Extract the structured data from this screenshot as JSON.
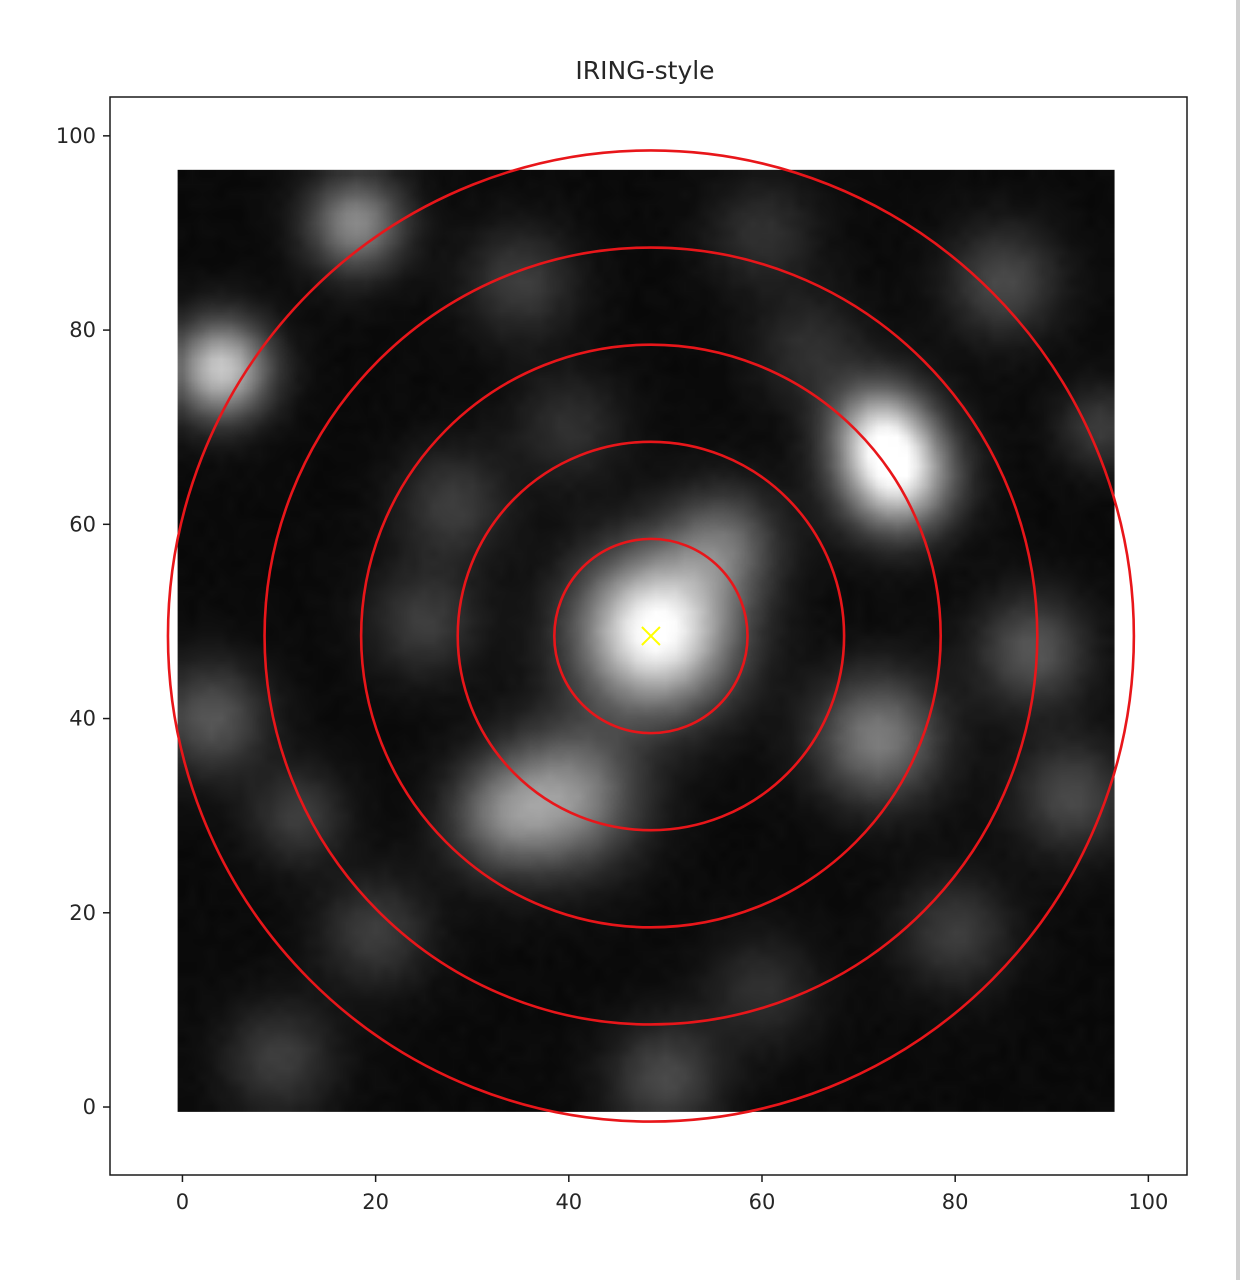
{
  "chart_data": {
    "type": "heatmap",
    "title": "IRING-style",
    "xlabel": "",
    "ylabel": "",
    "xlim": [
      -7.5,
      104
    ],
    "ylim": [
      -7,
      104
    ],
    "x_ticks": [
      "0",
      "20",
      "40",
      "60",
      "80",
      "100"
    ],
    "y_ticks": [
      "0",
      "20",
      "40",
      "60",
      "80",
      "100"
    ],
    "image": {
      "extent": [
        -0.5,
        96.5,
        -0.5,
        96.5
      ],
      "colormap": "gray",
      "blobs": [
        {
          "x": 49,
          "y": 49,
          "sigma": 5.5,
          "amp": 1.0
        },
        {
          "x": 74,
          "y": 65,
          "sigma": 4.0,
          "amp": 0.85
        },
        {
          "x": 72,
          "y": 70,
          "sigma": 3.5,
          "amp": 0.55
        },
        {
          "x": 4,
          "y": 76,
          "sigma": 3.5,
          "amp": 0.75
        },
        {
          "x": 18,
          "y": 91,
          "sigma": 3.5,
          "amp": 0.5
        },
        {
          "x": 40,
          "y": 32,
          "sigma": 5.0,
          "amp": 0.5
        },
        {
          "x": 33,
          "y": 30,
          "sigma": 4.0,
          "amp": 0.35
        },
        {
          "x": 72,
          "y": 38,
          "sigma": 4.5,
          "amp": 0.45
        },
        {
          "x": 56,
          "y": 58,
          "sigma": 4.0,
          "amp": 0.35
        },
        {
          "x": 88,
          "y": 47,
          "sigma": 4.0,
          "amp": 0.3
        },
        {
          "x": 92,
          "y": 32,
          "sigma": 4.0,
          "amp": 0.25
        },
        {
          "x": 3,
          "y": 40,
          "sigma": 4.0,
          "amp": 0.3
        },
        {
          "x": 25,
          "y": 50,
          "sigma": 4.0,
          "amp": 0.2
        },
        {
          "x": 20,
          "y": 18,
          "sigma": 4.0,
          "amp": 0.2
        },
        {
          "x": 50,
          "y": 3,
          "sigma": 4.0,
          "amp": 0.25
        },
        {
          "x": 60,
          "y": 12,
          "sigma": 4.0,
          "amp": 0.15
        },
        {
          "x": 80,
          "y": 18,
          "sigma": 4.0,
          "amp": 0.2
        },
        {
          "x": 85,
          "y": 85,
          "sigma": 4.0,
          "amp": 0.25
        },
        {
          "x": 35,
          "y": 85,
          "sigma": 4.0,
          "amp": 0.2
        },
        {
          "x": 60,
          "y": 90,
          "sigma": 4.0,
          "amp": 0.15
        },
        {
          "x": 10,
          "y": 5,
          "sigma": 4.0,
          "amp": 0.2
        },
        {
          "x": 28,
          "y": 62,
          "sigma": 4.0,
          "amp": 0.2
        },
        {
          "x": 95,
          "y": 70,
          "sigma": 3.0,
          "amp": 0.2
        },
        {
          "x": 12,
          "y": 30,
          "sigma": 3.5,
          "amp": 0.2
        },
        {
          "x": 40,
          "y": 70,
          "sigma": 4.0,
          "amp": 0.15
        },
        {
          "x": 65,
          "y": 78,
          "sigma": 4.0,
          "amp": 0.15
        }
      ]
    },
    "center_marker": {
      "x": 48.5,
      "y": 48.5,
      "symbol": "x",
      "color": "#ffff00"
    },
    "rings": {
      "center": [
        48.5,
        48.5
      ],
      "radii": [
        10,
        20,
        30,
        40,
        50
      ],
      "color": "#e8161a"
    },
    "grid": false,
    "legend": "none"
  }
}
